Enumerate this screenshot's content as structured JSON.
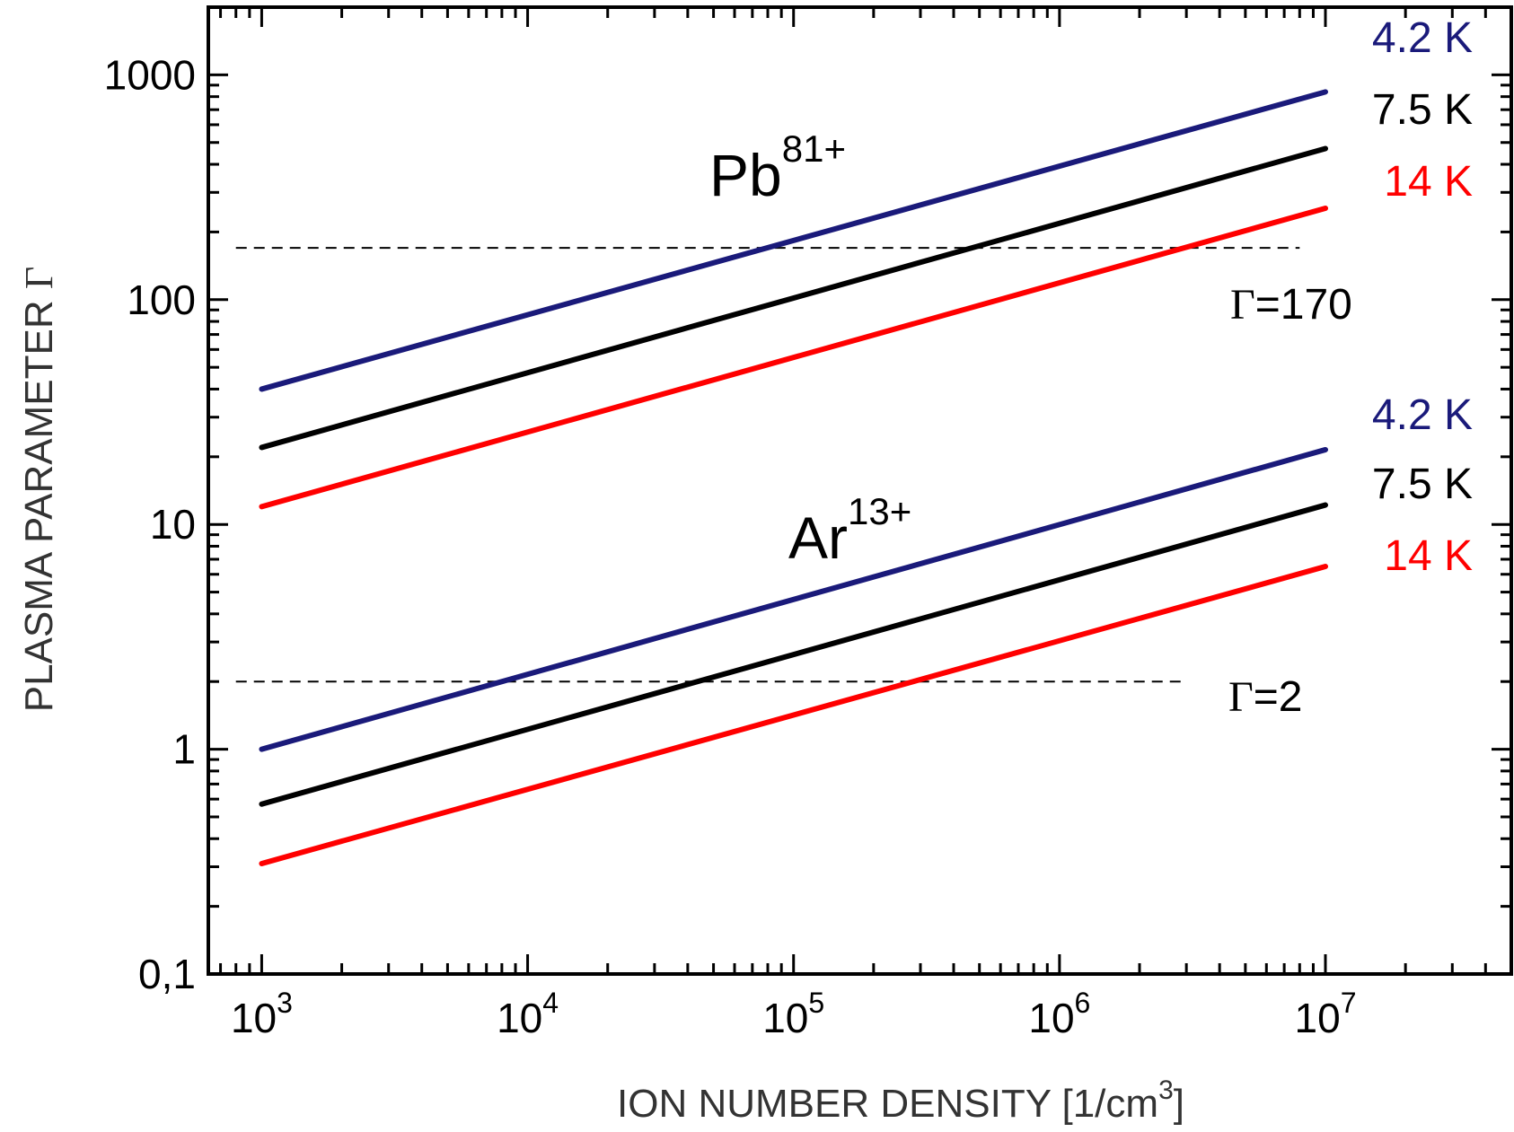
{
  "chart_data": {
    "type": "line",
    "x_scale": "log",
    "y_scale": "log",
    "xlim": [
      630,
      50000000
    ],
    "ylim": [
      0.1,
      2000
    ],
    "xlabel": "ION NUMBER DENSITY [1/cm",
    "xlabel_sup": "3",
    "xlabel_end": "]",
    "ylabel": "PLASMA PARAMETER ",
    "ylabel_symbol": "Γ",
    "x_ticks": [
      {
        "value": 1000,
        "base": "10",
        "exp": "3"
      },
      {
        "value": 10000,
        "base": "10",
        "exp": "4"
      },
      {
        "value": 100000,
        "base": "10",
        "exp": "5"
      },
      {
        "value": 1000000,
        "base": "10",
        "exp": "6"
      },
      {
        "value": 10000000,
        "base": "10",
        "exp": "7"
      }
    ],
    "y_ticks": [
      {
        "value": 0.1,
        "label": "0,1"
      },
      {
        "value": 1,
        "label": "1"
      },
      {
        "value": 10,
        "label": "10"
      },
      {
        "value": 100,
        "label": "100"
      },
      {
        "value": 1000,
        "label": "1000"
      }
    ],
    "groups": [
      {
        "ion": "Pb",
        "charge": "81+",
        "series": [
          {
            "name": "4.2 K",
            "color": "#1a1a7a",
            "x": [
              1000,
              10000000
            ],
            "y": [
              40,
              840
            ]
          },
          {
            "name": "7.5 K",
            "color": "#000000",
            "x": [
              1000,
              10000000
            ],
            "y": [
              22,
              470
            ]
          },
          {
            "name": "14 K",
            "color": "#ff0000",
            "x": [
              1000,
              10000000
            ],
            "y": [
              12,
              255
            ]
          }
        ]
      },
      {
        "ion": "Ar",
        "charge": "13+",
        "series": [
          {
            "name": "4.2 K",
            "color": "#1a1a7a",
            "x": [
              1000,
              10000000
            ],
            "y": [
              1.0,
              21.5
            ]
          },
          {
            "name": "7.5 K",
            "color": "#000000",
            "x": [
              1000,
              10000000
            ],
            "y": [
              0.57,
              12.2
            ]
          },
          {
            "name": "14 K",
            "color": "#ff0000",
            "x": [
              1000,
              10000000
            ],
            "y": [
              0.31,
              6.5
            ]
          }
        ]
      }
    ],
    "reference_lines": [
      {
        "y": 170,
        "x": [
          800,
          8000000
        ],
        "label_symbol": "Γ",
        "label_text": "=170"
      },
      {
        "y": 2,
        "x": [
          800,
          3000000
        ],
        "label_symbol": "Γ",
        "label_text": "=2"
      }
    ]
  }
}
